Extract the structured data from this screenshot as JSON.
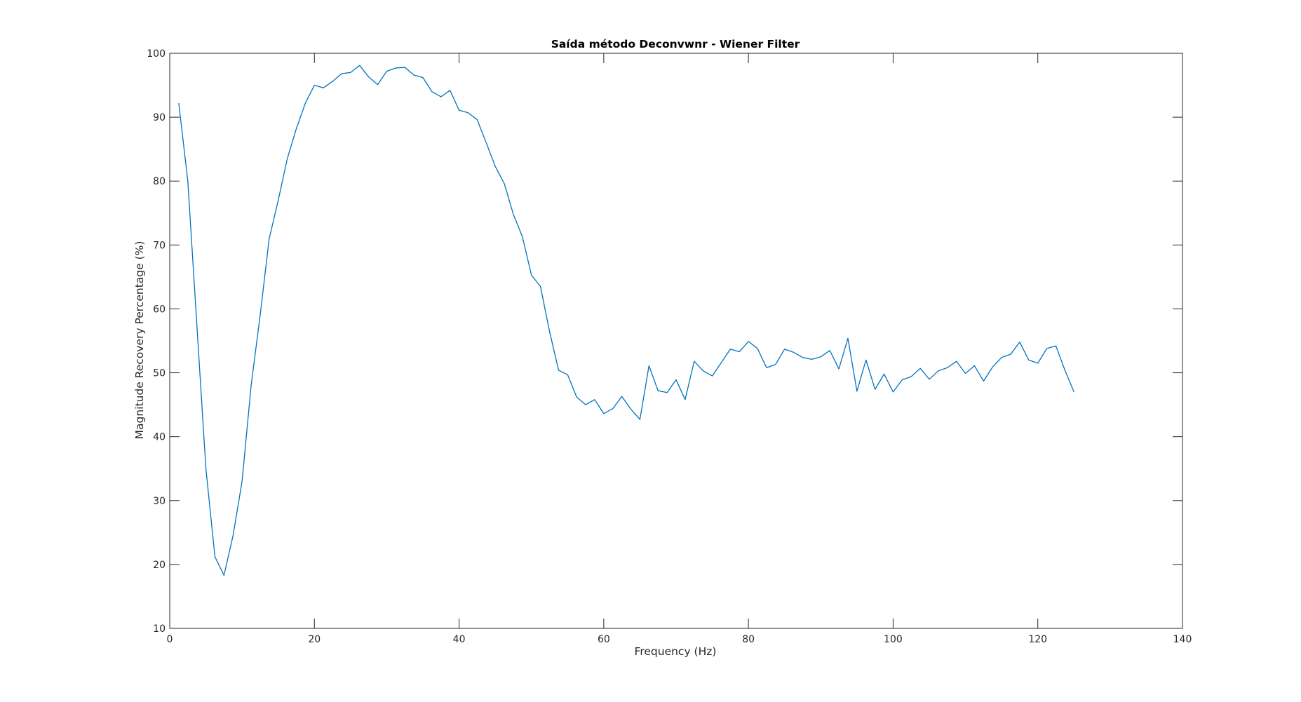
{
  "chart_data": {
    "type": "line",
    "title": "Saída método Deconvwnr - Wiener Filter",
    "xlabel": "Frequency (Hz)",
    "ylabel": "Magnitude Recovery Percentage (%)",
    "xlim": [
      0,
      140
    ],
    "ylim": [
      10,
      100
    ],
    "xticks": [
      0,
      20,
      40,
      60,
      80,
      100,
      120,
      140
    ],
    "yticks": [
      10,
      20,
      30,
      40,
      50,
      60,
      70,
      80,
      90,
      100
    ],
    "xtick_labels": [
      "0",
      "20",
      "40",
      "60",
      "80",
      "100",
      "120",
      "140"
    ],
    "ytick_labels": [
      "10",
      "20",
      "30",
      "40",
      "50",
      "60",
      "70",
      "80",
      "90",
      "100"
    ],
    "grid": false,
    "series": [
      {
        "color": "#0072bd",
        "x": [
          1.25,
          2.5,
          3.75,
          5.0,
          6.25,
          7.5,
          8.75,
          10.0,
          11.25,
          12.5,
          13.75,
          15.0,
          16.25,
          17.5,
          18.75,
          20.0,
          21.25,
          22.5,
          23.75,
          25.0,
          26.25,
          27.5,
          28.75,
          30.0,
          31.25,
          32.5,
          33.75,
          35.0,
          36.25,
          37.5,
          38.75,
          40.0,
          41.25,
          42.5,
          43.75,
          45.0,
          46.25,
          47.5,
          48.75,
          50.0,
          51.25,
          52.5,
          53.75,
          55.0,
          56.25,
          57.5,
          58.75,
          60.0,
          61.25,
          62.5,
          63.75,
          65.0,
          66.25,
          67.5,
          68.75,
          70.0,
          71.25,
          72.5,
          73.75,
          75.0,
          76.25,
          77.5,
          78.75,
          80.0,
          81.25,
          82.5,
          83.75,
          85.0,
          86.25,
          87.5,
          88.75,
          90.0,
          91.25,
          92.5,
          93.75,
          95.0,
          96.25,
          97.5,
          98.75,
          100.0,
          101.25,
          102.5,
          103.75,
          105.0,
          106.25,
          107.5,
          108.75,
          110.0,
          111.25,
          112.5,
          113.75,
          115.0,
          116.25,
          117.5,
          118.75,
          120.0,
          121.25,
          122.5,
          123.75,
          125.0
        ],
        "y": [
          92.2,
          80.0,
          57.5,
          35.0,
          21.2,
          18.3,
          24.5,
          33.0,
          48.0,
          59.0,
          71.0,
          77.0,
          83.5,
          88.2,
          92.2,
          95.0,
          94.6,
          95.6,
          96.8,
          97.0,
          98.1,
          96.3,
          95.1,
          97.2,
          97.7,
          97.8,
          96.6,
          96.2,
          94.0,
          93.2,
          94.2,
          91.1,
          90.7,
          89.6,
          86.0,
          82.3,
          79.6,
          74.8,
          71.3,
          65.3,
          63.5,
          56.5,
          50.4,
          49.7,
          46.2,
          45.0,
          45.8,
          43.6,
          44.4,
          46.3,
          44.3,
          42.7,
          51.1,
          47.2,
          46.9,
          48.9,
          45.8,
          51.8,
          50.3,
          49.5,
          51.6,
          53.7,
          53.3,
          54.9,
          53.8,
          50.8,
          51.3,
          53.7,
          53.2,
          52.4,
          52.1,
          52.5,
          53.5,
          50.6,
          55.4,
          47.1,
          52.0,
          47.4,
          49.8,
          47.0,
          48.9,
          49.4,
          50.7,
          49.0,
          50.3,
          50.8,
          51.8,
          49.9,
          51.1,
          48.7,
          50.9,
          52.4,
          52.9,
          54.8,
          52.0,
          51.5,
          53.8,
          54.2,
          50.4,
          47.0
        ]
      }
    ]
  }
}
